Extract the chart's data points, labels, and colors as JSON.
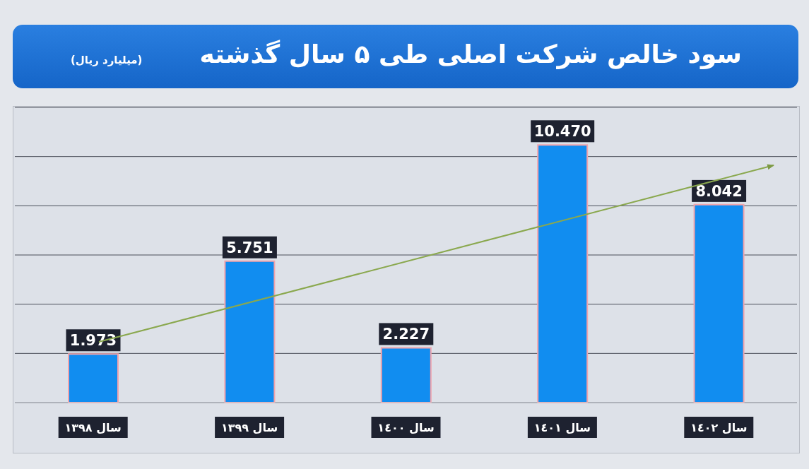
{
  "chart_data": {
    "type": "bar",
    "title": "سود خالص شرکت اصلی طی ۵ سال گذشته",
    "subtitle": "(میلیارد ریال)",
    "categories": [
      "سال ١٣٩٨",
      "سال ١٣٩٩",
      "سال ١٤٠٠",
      "سال ١٤٠١",
      "سال ١٤٠٢"
    ],
    "values": [
      1.973,
      5.751,
      2.227,
      10.47,
      8.042
    ],
    "value_labels": [
      "1.973",
      "5.751",
      "2.227",
      "10.470",
      "8.042"
    ],
    "color": "#118df0",
    "grid": "y",
    "tick_labels": "x"
  }
}
